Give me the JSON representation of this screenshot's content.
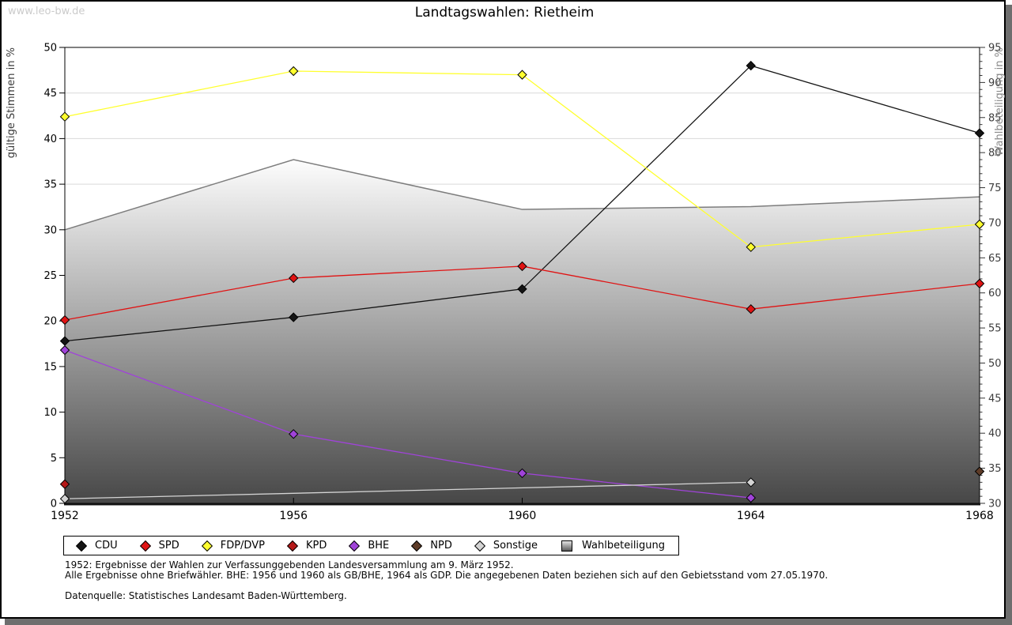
{
  "page": {
    "watermark": "www.leo-bw.de",
    "title": "Landtagswahlen: Rietheim",
    "footnotes": {
      "line1": "1952: Ergebnisse der Wahlen zur Verfassunggebenden Landesversammlung am 9. März 1952.",
      "line2": "Alle Ergebnisse ohne Briefwähler. BHE: 1956 und 1960 als GB/BHE, 1964 als GDP. Die angegebenen Daten beziehen sich auf den Gebietsstand vom 27.05.1970.",
      "source": "Datenquelle: Statistisches Landesamt Baden-Württemberg."
    }
  },
  "chart_data": {
    "type": "line",
    "title": "Landtagswahlen: Rietheim",
    "x": [
      1952,
      1956,
      1960,
      1964,
      1968
    ],
    "ylabel_left": "gültige Stimmen in %",
    "ylabel_right": "Wahlbeteiligung in %",
    "ylim_left": [
      0,
      50
    ],
    "ylim_right": [
      30,
      95
    ],
    "ytick_step": 5,
    "right_minor_tick_step": 1,
    "grid": true,
    "legend_position": "bottom",
    "series": [
      {
        "name": "CDU",
        "axis": "left",
        "color": "#141414",
        "values": [
          17.8,
          20.4,
          23.5,
          48.0,
          40.6
        ]
      },
      {
        "name": "SPD",
        "axis": "left",
        "color": "#e01313",
        "values": [
          20.1,
          24.7,
          26.0,
          21.3,
          24.1
        ]
      },
      {
        "name": "FDP/DVP",
        "axis": "left",
        "color": "#ffff2e",
        "values": [
          42.4,
          47.4,
          47.0,
          28.1,
          30.6
        ]
      },
      {
        "name": "KPD",
        "axis": "left",
        "color": "#b51919",
        "values": [
          2.1,
          null,
          null,
          null,
          null
        ]
      },
      {
        "name": "BHE",
        "axis": "left",
        "color": "#a043d9",
        "values": [
          16.8,
          7.6,
          3.3,
          0.6,
          null
        ]
      },
      {
        "name": "NPD",
        "axis": "left",
        "color": "#5e3c28",
        "values": [
          null,
          null,
          null,
          null,
          3.5
        ]
      },
      {
        "name": "Sonstige",
        "axis": "left",
        "color": "#d4d4d4",
        "values": [
          0.5,
          null,
          null,
          2.3,
          null
        ]
      },
      {
        "name": "Wahlbeteiligung",
        "axis": "right",
        "color": "#7d7d7d",
        "type": "area",
        "values": [
          69.0,
          79.0,
          71.9,
          72.3,
          73.7
        ],
        "area_gradient": [
          "#fdfdfd",
          "#474747"
        ]
      }
    ]
  }
}
